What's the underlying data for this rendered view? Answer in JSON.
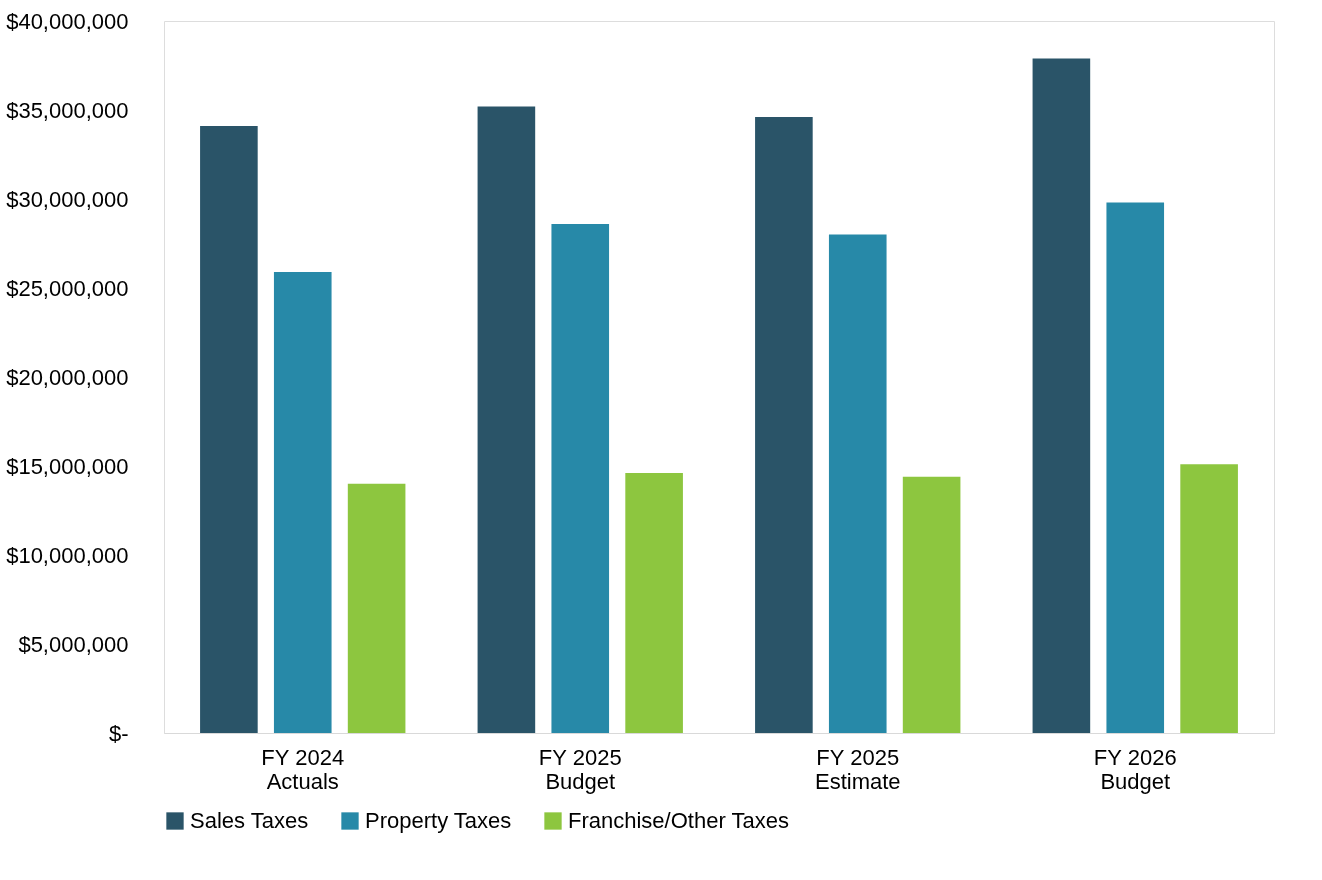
{
  "chart_data": {
    "type": "bar",
    "categories": [
      "FY 2024\nActuals",
      "FY 2025\nBudget",
      "FY 2025\nEstimate",
      "FY 2026\nBudget"
    ],
    "series": [
      {
        "name": "Sales Taxes",
        "color": "#2a5468",
        "values": [
          34100000,
          35200000,
          34600000,
          37900000
        ]
      },
      {
        "name": "Property Taxes",
        "color": "#2789a8",
        "values": [
          25900000,
          28600000,
          28000000,
          29800000
        ]
      },
      {
        "name": "Franchise/Other Taxes",
        "color": "#8dc63f",
        "values": [
          14000000,
          14600000,
          14400000,
          15100000
        ]
      }
    ],
    "ylim": [
      0,
      40000000
    ],
    "yticks": [
      {
        "value": 0,
        "label": "$-"
      },
      {
        "value": 5000000,
        "label": "$5,000,000"
      },
      {
        "value": 10000000,
        "label": "$10,000,000"
      },
      {
        "value": 15000000,
        "label": "$15,000,000"
      },
      {
        "value": 20000000,
        "label": "$20,000,000"
      },
      {
        "value": 25000000,
        "label": "$25,000,000"
      },
      {
        "value": 30000000,
        "label": "$30,000,000"
      },
      {
        "value": 35000000,
        "label": "$35,000,000"
      },
      {
        "value": 40000000,
        "label": "$40,000,000"
      }
    ],
    "grid": false,
    "legend": "bottom"
  }
}
